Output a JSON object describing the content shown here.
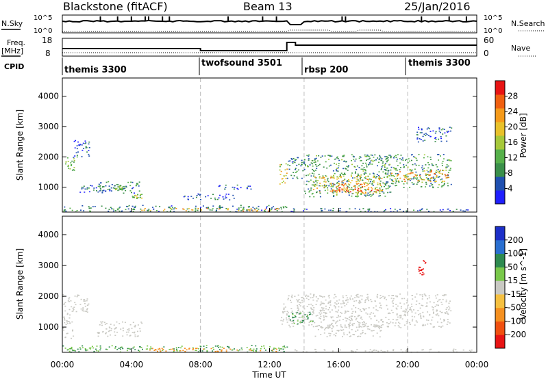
{
  "header": {
    "station": "Blackstone (fitACF)",
    "beam": "Beam 13",
    "date": "25/Jan/2016"
  },
  "noise_panel": {
    "left_label": "N.Sky",
    "right_label": "N.Search",
    "left_ticks": [
      "10^5",
      "10^0"
    ],
    "right_ticks": [
      "10^5",
      "10^0"
    ]
  },
  "freq_panel": {
    "left_label_line1": "Freq.",
    "left_label_line2": "[MHz]",
    "left_ticks": [
      "18",
      "8"
    ],
    "right_label": "Nave",
    "right_ticks": [
      "60",
      "0"
    ]
  },
  "cpid": {
    "label": "CPID",
    "segments": [
      {
        "name": "themis 3300",
        "start_hour": 0
      },
      {
        "name": "twofsound 3501",
        "start_hour": 8
      },
      {
        "name": "rbsp 200",
        "start_hour": 14
      },
      {
        "name": "themis 3300",
        "start_hour": 20
      }
    ]
  },
  "colors": {
    "power_scale": [
      "#1f1fff",
      "#2050b0",
      "#3a8f4a",
      "#56b04a",
      "#a6c83a",
      "#e8c12a",
      "#f59a1a",
      "#f06010",
      "#e81414"
    ],
    "velocity_scale": [
      "#1c2fc8",
      "#2a6fd0",
      "#2e8a50",
      "#79c84a",
      "#c9c9c3",
      "#f5c040",
      "#f59020",
      "#f05010",
      "#e81414"
    ]
  },
  "chart_data": [
    {
      "type": "heatmap",
      "title": "Power",
      "ylabel": "Slant Range [km]",
      "xlabel": "",
      "xlim": [
        0,
        24
      ],
      "ylim": [
        180,
        4600
      ],
      "yticks": [
        "1000",
        "2000",
        "3000",
        "4000"
      ],
      "colorbar_label": "Power [dB]",
      "colorbar_ticks": [
        "4",
        "8",
        "12",
        "16",
        "20",
        "24",
        "28"
      ],
      "colorbar_range": [
        0,
        32
      ],
      "regions": [
        {
          "t0": 0.0,
          "t1": 13.0,
          "r0": 200,
          "r1": 420,
          "value": 8
        },
        {
          "t0": 4.5,
          "t1": 12.5,
          "r0": 230,
          "r1": 320,
          "value": 22
        },
        {
          "t0": 0.1,
          "t1": 0.7,
          "r0": 1550,
          "r1": 2000,
          "value": 12
        },
        {
          "t0": 0.6,
          "t1": 1.6,
          "r0": 2000,
          "r1": 2600,
          "value": 6
        },
        {
          "t0": 1.0,
          "t1": 3.0,
          "r0": 850,
          "r1": 1100,
          "value": 6
        },
        {
          "t0": 2.0,
          "t1": 4.5,
          "r0": 820,
          "r1": 1200,
          "value": 8
        },
        {
          "t0": 3.0,
          "t1": 3.5,
          "r0": 900,
          "r1": 1050,
          "value": 14
        },
        {
          "t0": 4.0,
          "t1": 4.6,
          "r0": 600,
          "r1": 800,
          "value": 14
        },
        {
          "t0": 7.0,
          "t1": 10.0,
          "r0": 600,
          "r1": 800,
          "value": 5
        },
        {
          "t0": 9.0,
          "t1": 11.0,
          "r0": 950,
          "r1": 1100,
          "value": 5
        },
        {
          "t0": 12.5,
          "t1": 13.0,
          "r0": 1100,
          "r1": 1800,
          "value": 18
        },
        {
          "t0": 13.0,
          "t1": 14.2,
          "r0": 1300,
          "r1": 2000,
          "value": 8
        },
        {
          "t0": 14.0,
          "t1": 19.0,
          "r0": 700,
          "r1": 2100,
          "value": 10
        },
        {
          "t0": 14.5,
          "t1": 18.5,
          "r0": 800,
          "r1": 1400,
          "value": 20
        },
        {
          "t0": 15.5,
          "t1": 18.5,
          "r0": 850,
          "r1": 1150,
          "value": 26
        },
        {
          "t0": 18.5,
          "t1": 22.5,
          "r0": 1000,
          "r1": 2100,
          "value": 10
        },
        {
          "t0": 19.0,
          "t1": 22.3,
          "r0": 1200,
          "r1": 1600,
          "value": 22
        },
        {
          "t0": 20.5,
          "t1": 22.5,
          "r0": 2500,
          "r1": 3000,
          "value": 6
        },
        {
          "t0": 13.0,
          "t1": 23.8,
          "r0": 200,
          "r1": 320,
          "value": 6
        }
      ]
    },
    {
      "type": "heatmap",
      "title": "Velocity",
      "ylabel": "Slant Range [km]",
      "xlabel": "Time UT",
      "xlim": [
        0,
        24
      ],
      "ylim": [
        180,
        4600
      ],
      "xticks": [
        "00:00",
        "04:00",
        "08:00",
        "12:00",
        "16:00",
        "20:00",
        "00:00"
      ],
      "yticks": [
        "1000",
        "2000",
        "3000",
        "4000"
      ],
      "colorbar_label": "Velocity [m s^-1]",
      "colorbar_ticks": [
        "200",
        "100",
        "50",
        "15",
        "-15",
        "-50",
        "-100",
        "-200"
      ],
      "regions": [
        {
          "t0": 0.0,
          "t1": 1.5,
          "r0": 1500,
          "r1": 2100,
          "value": 0
        },
        {
          "t0": 0.0,
          "t1": 0.6,
          "r0": 600,
          "r1": 1500,
          "value": 0
        },
        {
          "t0": 2.0,
          "t1": 4.6,
          "r0": 700,
          "r1": 1200,
          "value": 0
        },
        {
          "t0": 0.0,
          "t1": 13.0,
          "r0": 200,
          "r1": 420,
          "value": 30
        },
        {
          "t0": 5.0,
          "t1": 12.5,
          "r0": 220,
          "r1": 330,
          "value": -60
        },
        {
          "t0": 12.5,
          "t1": 13.0,
          "r0": 1100,
          "r1": 1800,
          "value": 0
        },
        {
          "t0": 13.0,
          "t1": 22.5,
          "r0": 1000,
          "r1": 2100,
          "value": 0
        },
        {
          "t0": 14.5,
          "t1": 18.5,
          "r0": 700,
          "r1": 1100,
          "value": 0
        },
        {
          "t0": 13.0,
          "t1": 14.5,
          "r0": 1100,
          "r1": 1500,
          "value": 40
        },
        {
          "t0": 20.6,
          "t1": 21.0,
          "r0": 2700,
          "r1": 3200,
          "value": -200
        },
        {
          "t0": 13.0,
          "t1": 23.8,
          "r0": 200,
          "r1": 300,
          "value": 0
        }
      ]
    }
  ]
}
